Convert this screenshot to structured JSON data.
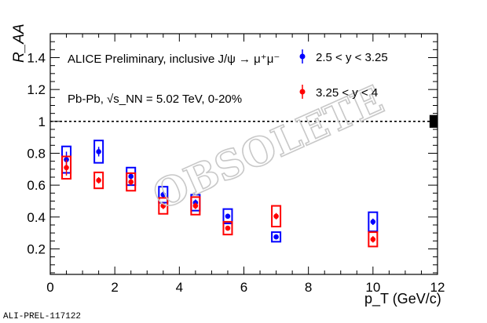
{
  "chart_data": {
    "type": "scatter",
    "title": "",
    "xlabel": "p_T (GeV/c)",
    "ylabel": "R_AA",
    "xlim": [
      0,
      12
    ],
    "ylim": [
      0.04,
      1.55
    ],
    "xticks": [
      "0",
      "2",
      "4",
      "6",
      "8",
      "10",
      "12"
    ],
    "yticks": [
      "0.2",
      "0.4",
      "0.6",
      "0.8",
      "1",
      "1.2",
      "1.4"
    ],
    "reference_line": 1.0,
    "global_uncertainty": {
      "x": 11.85,
      "value": 1.0,
      "half_height": 0.04,
      "color": "#000000"
    },
    "annotations": [
      "ALICE Preliminary, inclusive J/ψ → μ⁺μ⁻",
      "Pb-Pb, √s_NN = 5.02 TeV, 0-20%"
    ],
    "watermark": "OBSOLETE",
    "legend_placement": "top-right",
    "series": [
      {
        "name": "2.5 < y < 3.25",
        "color": "#0000ff",
        "x": [
          0.5,
          1.5,
          2.5,
          3.5,
          4.5,
          5.5,
          7,
          10
        ],
        "values": [
          0.76,
          0.81,
          0.655,
          0.54,
          0.49,
          0.405,
          0.275,
          0.37
        ],
        "stat": [
          0.05,
          0.03,
          0.025,
          0.02,
          0.02,
          0.015,
          0.01,
          0.02
        ],
        "syst": [
          0.083,
          0.07,
          0.055,
          0.05,
          0.05,
          0.045,
          0.03,
          0.06
        ]
      },
      {
        "name": "3.25 < y < 4",
        "color": "#ff0000",
        "x": [
          0.5,
          1.5,
          2.5,
          3.5,
          4.5,
          5.5,
          7,
          10
        ],
        "values": [
          0.71,
          0.63,
          0.62,
          0.47,
          0.47,
          0.33,
          0.405,
          0.26
        ],
        "stat": [
          0.05,
          0.02,
          0.02,
          0.02,
          0.02,
          0.015,
          0.02,
          0.02
        ],
        "syst": [
          0.07,
          0.05,
          0.055,
          0.05,
          0.055,
          0.04,
          0.065,
          0.045
        ]
      }
    ]
  },
  "footer_code": "ALI-PREL-117122"
}
